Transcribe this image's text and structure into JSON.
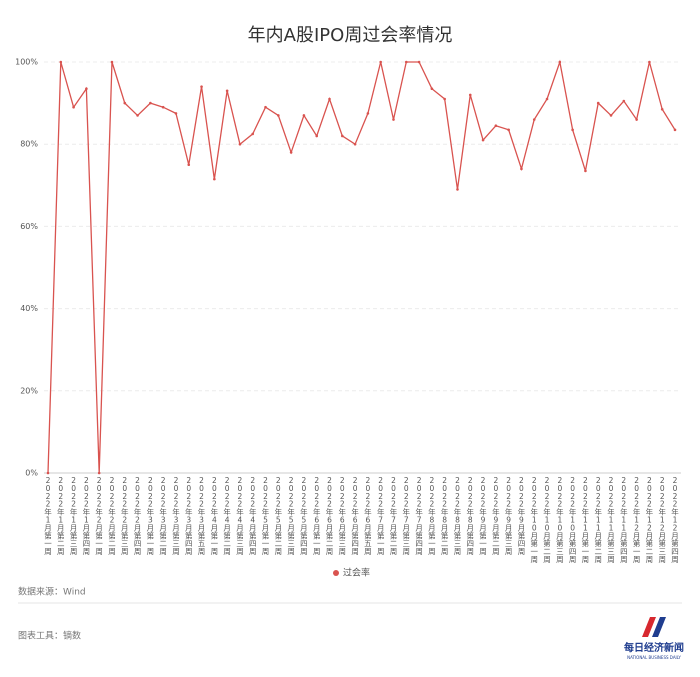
{
  "chart_data": {
    "type": "line",
    "title": "年内A股IPO周过会率情况",
    "categories": [
      "2022年1月第一周",
      "2022年1月第二周",
      "2022年1月第三周",
      "2022年1月第四周",
      "2022年2月第一周",
      "2022年2月第二周",
      "2022年2月第三周",
      "2022年2月第四周",
      "2022年3月第一周",
      "2022年3月第二周",
      "2022年3月第三周",
      "2022年3月第四周",
      "2022年3月第五周",
      "2022年4月第一周",
      "2022年4月第二周",
      "2022年4月第三周",
      "2022年4月第四周",
      "2022年5月第一周",
      "2022年5月第二周",
      "2022年5月第三周",
      "2022年5月第四周",
      "2022年6月第一周",
      "2022年6月第二周",
      "2022年6月第三周",
      "2022年6月第四周",
      "2022年6月第五周",
      "2022年7月第一周",
      "2022年7月第二周",
      "2022年7月第三周",
      "2022年7月第四周",
      "2022年8月第一周",
      "2022年8月第二周",
      "2022年8月第三周",
      "2022年8月第四周",
      "2022年9月第一周",
      "2022年9月第二周",
      "2022年9月第三周",
      "2022年9月第四周",
      "2022年10月第一周",
      "2022年10月第二周",
      "2022年10月第三周",
      "2022年10月第四周",
      "2022年11月第一周",
      "2022年11月第二周",
      "2022年11月第三周",
      "2022年11月第四周",
      "2022年12月第一周",
      "2022年12月第二周",
      "2022年12月第三周",
      "2022年12月第四周"
    ],
    "series": [
      {
        "name": "过会率",
        "color": "#d9534f",
        "values": [
          0,
          100,
          89,
          93.5,
          0,
          100,
          90,
          87,
          90,
          89,
          87.5,
          75,
          94,
          71.5,
          93,
          80,
          82.5,
          89,
          87,
          78,
          87,
          82,
          91,
          82,
          80,
          87.5,
          100,
          86,
          100,
          100,
          93.5,
          91,
          69,
          92,
          81,
          84.5,
          83.5,
          74,
          86,
          91,
          100,
          83.5,
          73.5,
          90,
          87,
          90.5,
          86,
          100,
          88.5,
          83.5
        ]
      }
    ],
    "ylim": [
      0,
      100
    ],
    "yticks": [
      {
        "value": 0,
        "label": "0%"
      },
      {
        "value": 20,
        "label": "20%"
      },
      {
        "value": 40,
        "label": "40%"
      },
      {
        "value": 60,
        "label": "60%"
      },
      {
        "value": 80,
        "label": "80%"
      },
      {
        "value": 100,
        "label": "100%"
      }
    ],
    "grid": true,
    "legend": "bottom"
  },
  "footer": {
    "source": "数据来源：Wind",
    "tool": "图表工具：镝数",
    "logo_cn": "每日经济新闻",
    "logo_en": "NATIONAL BUSINESS DAILY"
  }
}
